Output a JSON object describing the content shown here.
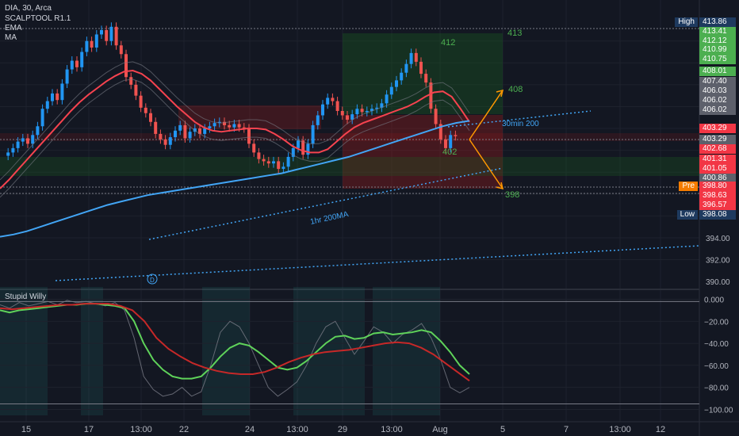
{
  "chart_data": {
    "type": "line",
    "title": "DIA, 30, Arca",
    "indicators": [
      "SCALPTOOL R1.1",
      "EMA",
      "MA"
    ],
    "oscillator_title": "Stupid Willy",
    "x_tick_labels": [
      "15",
      "17",
      "13:00",
      "22",
      "24",
      "13:00",
      "29",
      "13:00",
      "Aug",
      "5",
      "7",
      "13:00",
      "12"
    ],
    "price_axis": {
      "ticks": [
        "394.00",
        "392.00",
        "390.00"
      ],
      "ylim": [
        389.5,
        414.3
      ]
    },
    "price_labels": [
      {
        "text": "High",
        "value": "413.86",
        "kind": "high"
      },
      {
        "text": "",
        "value": "413.41",
        "kind": "green"
      },
      {
        "text": "",
        "value": "412.12",
        "kind": "green"
      },
      {
        "text": "",
        "value": "410.99",
        "kind": "green"
      },
      {
        "text": "",
        "value": "410.75",
        "kind": "green"
      },
      {
        "text": "",
        "value": "408.01",
        "kind": "green"
      },
      {
        "text": "",
        "value": "407.40",
        "kind": "gray"
      },
      {
        "text": "",
        "value": "406.03",
        "kind": "gray"
      },
      {
        "text": "",
        "value": "406.02",
        "kind": "gray"
      },
      {
        "text": "",
        "value": "406.02",
        "kind": "gray"
      },
      {
        "text": "",
        "value": "403.29",
        "kind": "red"
      },
      {
        "text": "",
        "value": "403.29",
        "kind": "gray"
      },
      {
        "text": "",
        "value": "402.68",
        "kind": "red"
      },
      {
        "text": "",
        "value": "401.31",
        "kind": "red"
      },
      {
        "text": "",
        "value": "401.05",
        "kind": "red"
      },
      {
        "text": "",
        "value": "400.86",
        "kind": "gray"
      },
      {
        "text": "Pre",
        "value": "398.80",
        "kind": "pre"
      },
      {
        "text": "",
        "value": "398.63",
        "kind": "red"
      },
      {
        "text": "",
        "value": "396.57",
        "kind": "red"
      },
      {
        "text": "Low",
        "value": "398.08",
        "kind": "low"
      }
    ],
    "annotations": [
      "413",
      "412",
      "408",
      "30min 200",
      "402",
      "398",
      "1hr 200MA"
    ],
    "oscillator_axis": {
      "ticks": [
        "0.000",
        "−20.00",
        "−40.00",
        "−60.00",
        "−80.00",
        "−100.00"
      ],
      "ylim": [
        -104,
        4
      ]
    },
    "price_series": {
      "name": "DIA",
      "values": [
        401.5,
        401.8,
        402.2,
        402.8,
        403.1,
        402.6,
        403.4,
        404.2,
        405.8,
        406.5,
        407.2,
        406.6,
        408.1,
        409.4,
        410.2,
        409.6,
        411.0,
        412.0,
        411.4,
        412.6,
        413.0,
        412.0,
        413.3,
        411.6,
        410.8,
        408.7,
        408.0,
        407.0,
        405.9,
        405.4,
        404.6,
        403.5,
        403.0,
        402.5,
        403.2,
        403.8,
        404.3,
        403.1,
        403.7,
        404.0,
        403.5,
        404.0,
        404.2,
        404.5,
        404.6,
        404.3,
        404.1,
        404.4,
        404.1,
        404.0,
        402.6,
        401.8,
        401.2,
        401.0,
        400.8,
        401.0,
        400.3,
        400.5,
        401.4,
        402.2,
        402.9,
        401.6,
        402.6,
        404.3,
        405.2,
        406.2,
        406.8,
        406.5,
        405.6,
        405.2,
        404.8,
        405.3,
        405.8,
        405.5,
        405.6,
        405.8,
        405.9,
        406.3,
        407.1,
        407.8,
        408.4,
        409.1,
        409.9,
        410.9,
        410.1,
        409.0,
        408.2,
        405.8,
        404.4,
        403.0,
        402.2,
        403.4,
        403.3
      ]
    },
    "ema_values": [
      398.5,
      399.3,
      400.2,
      401.1,
      402.0,
      402.9,
      403.8,
      404.7,
      405.6,
      406.4,
      407.1,
      407.7,
      408.3,
      408.8,
      409.2,
      409.3,
      409.0,
      408.4,
      407.6,
      406.8,
      406.0,
      405.3,
      404.6,
      404.1,
      403.8,
      403.7,
      403.8,
      403.9,
      404.0,
      404.0,
      403.9,
      403.5,
      403.0,
      402.4,
      402.0,
      401.8,
      401.8,
      402.1,
      402.8,
      403.5,
      404.1,
      404.5,
      404.8,
      405.1,
      405.4,
      405.7,
      406.0,
      406.4,
      406.9,
      407.3,
      407.4,
      406.9,
      405.8,
      404.6
    ],
    "ma_values": [
      394.1,
      394.3,
      394.6,
      395.0,
      395.4,
      395.8,
      396.2,
      396.6,
      397.0,
      397.3,
      397.6,
      397.9,
      398.1,
      398.3,
      398.5,
      398.7,
      398.9,
      399.1,
      399.3,
      399.5,
      399.7,
      399.9,
      400.2,
      400.5,
      400.8,
      401.1,
      401.4,
      401.8,
      402.2,
      402.6,
      403.0,
      403.4,
      403.8,
      404.2,
      404.5,
      404.7
    ],
    "osc_fast": [
      -5,
      -8,
      -3,
      -6,
      -4,
      -2,
      -5,
      -1,
      -3,
      -2,
      -4,
      -6,
      -3,
      -10,
      -35,
      -70,
      -82,
      -88,
      -86,
      -80,
      -88,
      -84,
      -60,
      -30,
      -20,
      -25,
      -40,
      -60,
      -80,
      -88,
      -82,
      -75,
      -60,
      -40,
      -25,
      -20,
      -35,
      -50,
      -38,
      -25,
      -30,
      -40,
      -32,
      -28,
      -22,
      -35,
      -55,
      -80,
      -85,
      -80
    ],
    "osc_slow": [
      -10,
      -12,
      -10,
      -9,
      -8,
      -7,
      -6,
      -5,
      -5,
      -4,
      -4,
      -5,
      -6,
      -8,
      -20,
      -40,
      -55,
      -64,
      -70,
      -72,
      -72,
      -70,
      -62,
      -52,
      -44,
      -40,
      -42,
      -48,
      -55,
      -62,
      -64,
      -62,
      -56,
      -48,
      -40,
      -34,
      -33,
      -36,
      -35,
      -31,
      -30,
      -32,
      -31,
      -30,
      -28,
      -30,
      -38,
      -48,
      -60,
      -68
    ],
    "osc_signal": [
      -8,
      -9,
      -8,
      -7,
      -6,
      -5,
      -5,
      -4,
      -4,
      -4,
      -6,
      -10,
      -20,
      -35,
      -45,
      -52,
      -58,
      -62,
      -65,
      -67,
      -68,
      -68,
      -66,
      -62,
      -57,
      -53,
      -50,
      -48,
      -47,
      -46,
      -44,
      -42,
      -40,
      -39,
      -40,
      -44,
      -50,
      -58,
      -66,
      -74
    ],
    "grid": true,
    "colors": {
      "background": "#131722",
      "up_candle": "#2196f3",
      "down_candle": "#ef5350",
      "ema_line": "#f6434f",
      "ma_line": "#42a5f5",
      "osc_fast": "#5fd35a",
      "osc_slow": "#4caf50",
      "osc_signal": "#c62828",
      "target_arrow": "#ff9800",
      "label_green": "#4caf50",
      "label_red": "#f23645",
      "label_gray": "#5d606b",
      "label_pre": "#f57c00",
      "label_high": "#1e3a5f"
    }
  }
}
